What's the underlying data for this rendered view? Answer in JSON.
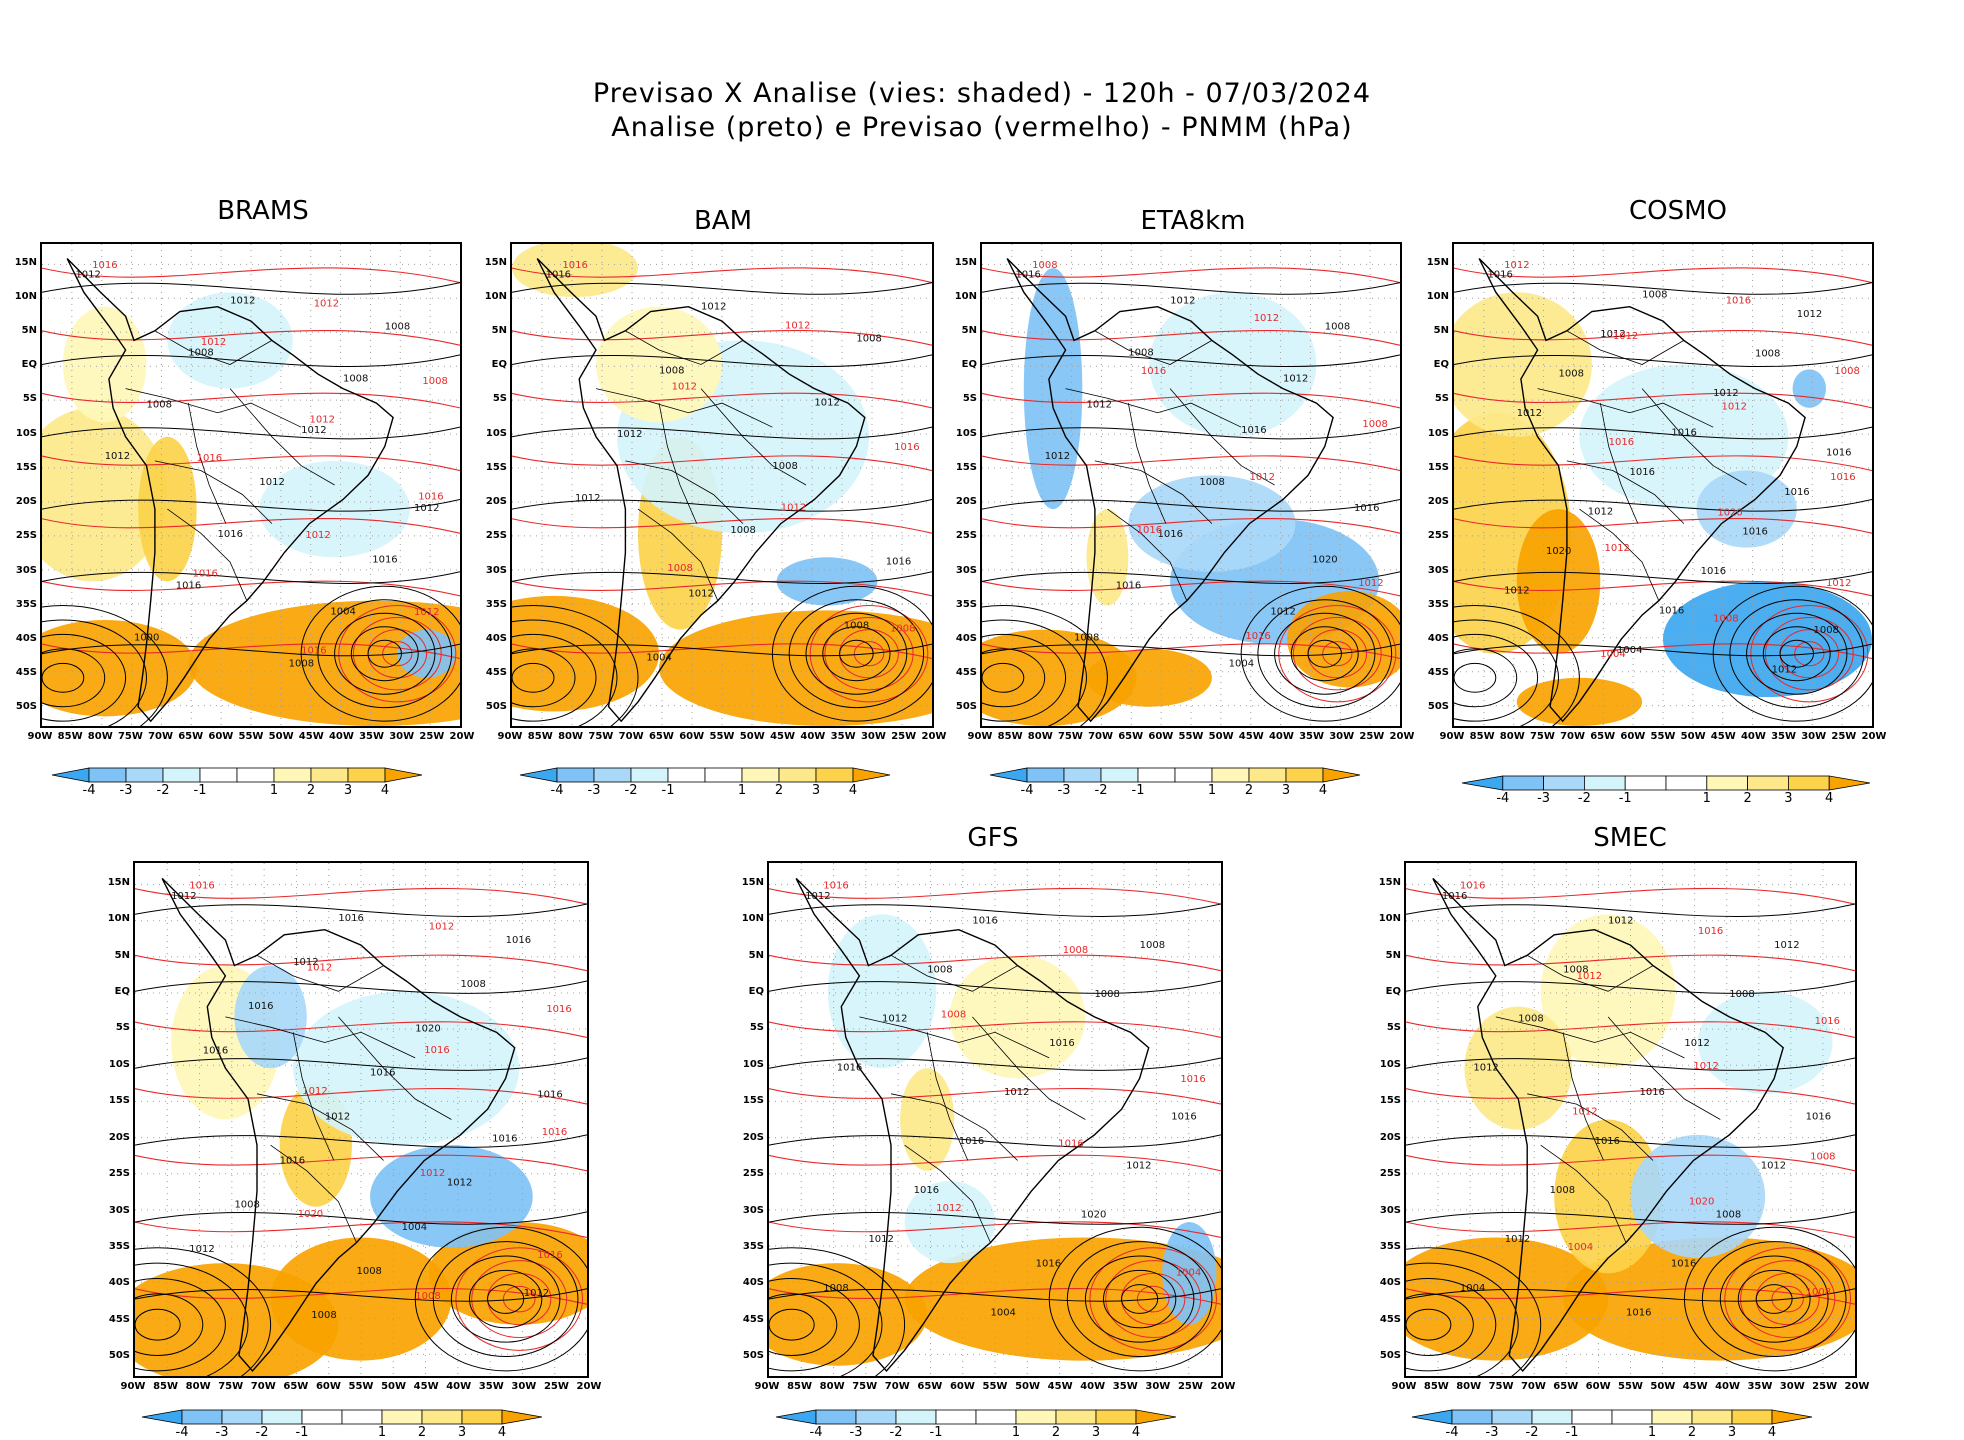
{
  "title": {
    "line1": "Previsao X Analise (vies: shaded) - 120h - 07/03/2024",
    "line2": "Analise (preto) e Previsao (vermelho) - PNMM (hPa)"
  },
  "colors": {
    "neg4": "#3ba7f0",
    "neg3": "#7fc2f5",
    "neg2": "#a9d8f8",
    "neg1": "#d4f4fb",
    "zero": "#ffffff",
    "pos1": "#fff7b8",
    "pos2": "#fde98a",
    "pos3": "#fcd34a",
    "pos4": "#f9a300",
    "analysis_contour": "#000000",
    "forecast_contour": "#e8282a",
    "grid": "#a0a0a0"
  },
  "axes": {
    "lat_labels": [
      "15N",
      "10N",
      "5N",
      "EQ",
      "5S",
      "10S",
      "15S",
      "20S",
      "25S",
      "30S",
      "35S",
      "40S",
      "45S",
      "50S"
    ],
    "lon_labels": [
      "90W",
      "85W",
      "80W",
      "75W",
      "70W",
      "65W",
      "60W",
      "55W",
      "50W",
      "45W",
      "40W",
      "35W",
      "30W",
      "25W",
      "20W"
    ]
  },
  "colorbar": {
    "labels": [
      "-4",
      "-3",
      "-2",
      "-1",
      "1",
      "2",
      "3",
      "4"
    ]
  },
  "panels": [
    {
      "name": "BRAMS",
      "contour_labels_black": [
        "1012",
        "1012",
        "1008",
        "1008",
        "1008",
        "1008",
        "1012",
        "1012",
        "1012",
        "1012",
        "1016",
        "1016",
        "1016",
        "1004",
        "1000",
        "1008"
      ],
      "contour_labels_red": [
        "1016",
        "1012",
        "1012",
        "1008",
        "1012",
        "1016",
        "1016",
        "1012",
        "1016",
        "1012",
        "1016"
      ]
    },
    {
      "name": "BAM",
      "contour_labels_black": [
        "1016",
        "1012",
        "1008",
        "1008",
        "1012",
        "1012",
        "1008",
        "1012",
        "1008",
        "1016",
        "1012",
        "1008",
        "1004"
      ],
      "contour_labels_red": [
        "1016",
        "1012",
        "1012",
        "1016",
        "1012",
        "1008",
        "1008"
      ]
    },
    {
      "name": "ETA8km",
      "contour_labels_black": [
        "1016",
        "1012",
        "1008",
        "1008",
        "1012",
        "1012",
        "1016",
        "1012",
        "1008",
        "1016",
        "1016",
        "1020",
        "1016",
        "1012",
        "1008",
        "1004"
      ],
      "contour_labels_red": [
        "1008",
        "1012",
        "1016",
        "1008",
        "1012",
        "1016",
        "1012",
        "1016"
      ]
    },
    {
      "name": "COSMO",
      "contour_labels_black": [
        "1016",
        "1008",
        "1012",
        "1012",
        "1008",
        "1008",
        "1012",
        "1012",
        "1016",
        "1016",
        "1016",
        "1016",
        "1012",
        "1016",
        "1020",
        "1016",
        "1012",
        "1016",
        "1008",
        "1004",
        "1012"
      ],
      "contour_labels_red": [
        "1012",
        "1016",
        "1012",
        "1008",
        "1012",
        "1016",
        "1016",
        "1020",
        "1012",
        "1012",
        "1008",
        "1004"
      ]
    },
    {
      "name": "",
      "contour_labels_black": [
        "1012",
        "1016",
        "1016",
        "1012",
        "1008",
        "1016",
        "1020",
        "1016",
        "1016",
        "1016",
        "1012",
        "1016",
        "1016",
        "1012",
        "1008",
        "1004",
        "1012",
        "1008",
        "1012",
        "1008"
      ],
      "contour_labels_red": [
        "1016",
        "1012",
        "1012",
        "1016",
        "1016",
        "1012",
        "1016",
        "1012",
        "1020",
        "1016",
        "1008"
      ]
    },
    {
      "name": "GFS",
      "contour_labels_black": [
        "1012",
        "1016",
        "1008",
        "1008",
        "1008",
        "1012",
        "1016",
        "1016",
        "1012",
        "1016",
        "1016",
        "1012",
        "1016",
        "1020",
        "1012",
        "1016",
        "1008",
        "1004"
      ],
      "contour_labels_red": [
        "1016",
        "1008",
        "1008",
        "1016",
        "1016",
        "1012",
        "1004"
      ]
    },
    {
      "name": "SMEC",
      "contour_labels_black": [
        "1016",
        "1012",
        "1012",
        "1008",
        "1008",
        "1008",
        "1012",
        "1012",
        "1016",
        "1016",
        "1016",
        "1012",
        "1008",
        "1008",
        "1012",
        "1016",
        "1004",
        "1016"
      ],
      "contour_labels_red": [
        "1016",
        "1016",
        "1012",
        "1016",
        "1012",
        "1012",
        "1008",
        "1020",
        "1004",
        "1008"
      ]
    }
  ]
}
